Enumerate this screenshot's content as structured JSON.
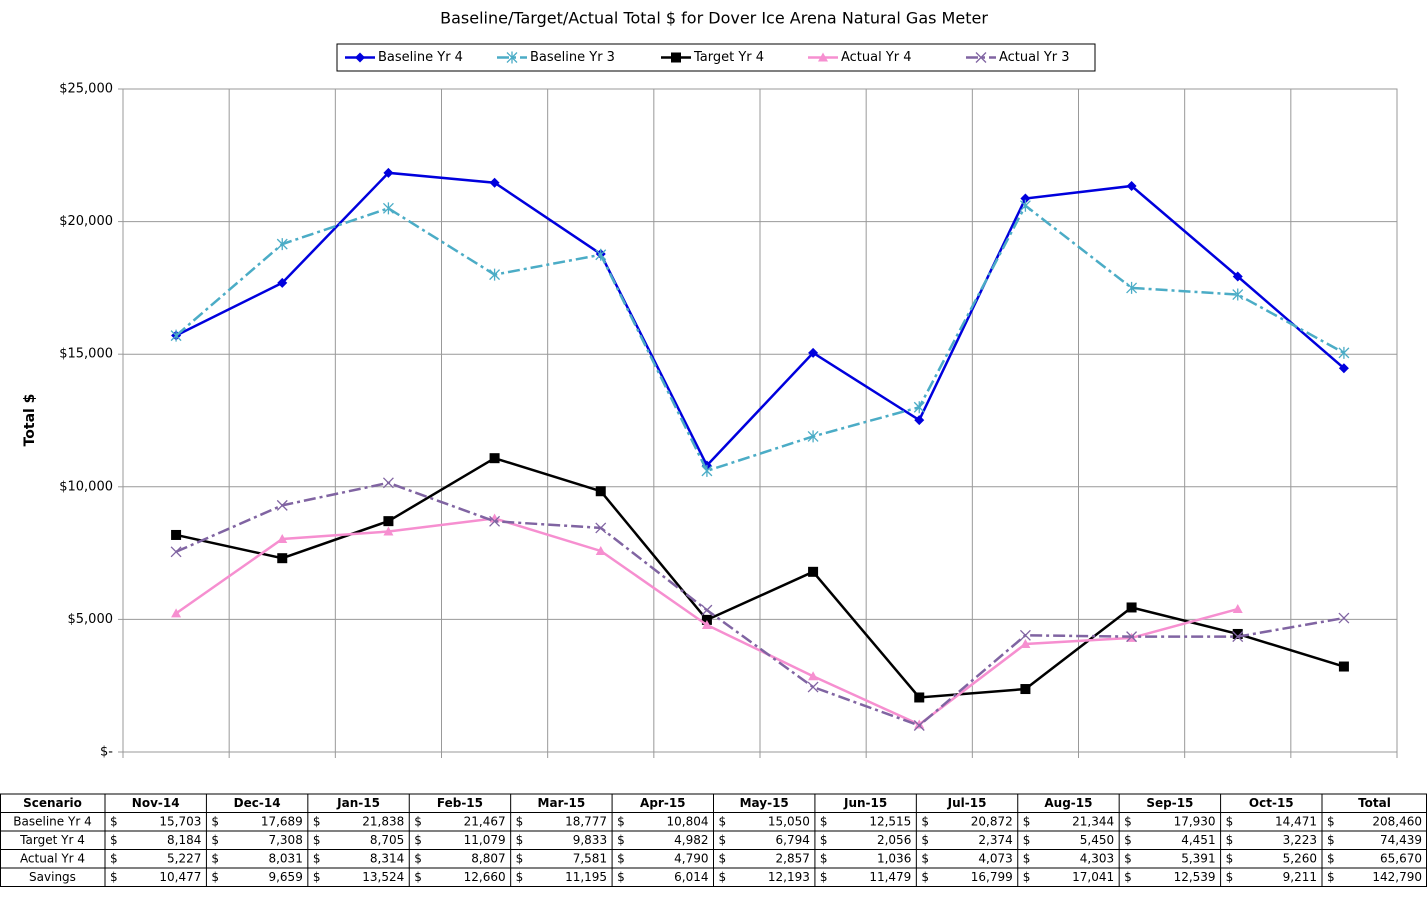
{
  "chart_data": {
    "type": "line",
    "title": "Baseline/Target/Actual Total $ for Dover Ice Arena Natural Gas Meter",
    "y_label": "Total $",
    "ylim": [
      0,
      25000
    ],
    "yticks": [
      {
        "value": 0,
        "label": "$-"
      },
      {
        "value": 5000,
        "label": "$5,000"
      },
      {
        "value": 10000,
        "label": "$10,000"
      },
      {
        "value": 15000,
        "label": "$15,000"
      },
      {
        "value": 20000,
        "label": "$20,000"
      },
      {
        "value": 25000,
        "label": "$25,000"
      }
    ],
    "grid": true,
    "legend": "top",
    "series": [
      {
        "name": "Baseline Yr 4",
        "color": "#0000dd",
        "dash": "solid",
        "marker": "diamond",
        "values": [
          15703,
          17689,
          21838,
          21467,
          18777,
          10804,
          15050,
          12515,
          20872,
          21344,
          17930,
          14471
        ]
      },
      {
        "name": "Baseline Yr 3",
        "color": "#4bacc6",
        "dash": "dashdot",
        "marker": "asterisk",
        "values": [
          15700,
          19150,
          20500,
          18000,
          18750,
          10600,
          11900,
          13000,
          20600,
          17500,
          17250,
          15050
        ]
      },
      {
        "name": "Target Yr 4",
        "color": "#000000",
        "dash": "solid",
        "marker": "square",
        "values": [
          8184,
          7308,
          8705,
          11079,
          9833,
          4982,
          6794,
          2056,
          2374,
          5450,
          4451,
          3223
        ]
      },
      {
        "name": "Actual Yr 4",
        "color": "#f68fd0",
        "dash": "solid",
        "marker": "triangle",
        "values": [
          5227,
          8031,
          8314,
          8807,
          7581,
          4790,
          2857,
          1036,
          4073,
          4303,
          5391,
          null
        ]
      },
      {
        "name": "Actual Yr 3",
        "color": "#8064a2",
        "dash": "dashdot",
        "marker": "x",
        "values": [
          7550,
          9300,
          10150,
          8700,
          8450,
          5350,
          2450,
          1000,
          4400,
          4350,
          4350,
          5050
        ]
      }
    ]
  },
  "table": {
    "currency": "$",
    "header": [
      "Scenario",
      "Nov-14",
      "Dec-14",
      "Jan-15",
      "Feb-15",
      "Mar-15",
      "Apr-15",
      "May-15",
      "Jun-15",
      "Jul-15",
      "Aug-15",
      "Sep-15",
      "Oct-15",
      "Total"
    ],
    "rows": [
      {
        "label": "Baseline Yr 4",
        "cells": [
          "15,703",
          "17,689",
          "21,838",
          "21,467",
          "18,777",
          "10,804",
          "15,050",
          "12,515",
          "20,872",
          "21,344",
          "17,930",
          "14,471",
          "208,460"
        ]
      },
      {
        "label": "Target Yr 4",
        "cells": [
          "8,184",
          "7,308",
          "8,705",
          "11,079",
          "9,833",
          "4,982",
          "6,794",
          "2,056",
          "2,374",
          "5,450",
          "4,451",
          "3,223",
          "74,439"
        ]
      },
      {
        "label": "Actual Yr 4",
        "cells": [
          "5,227",
          "8,031",
          "8,314",
          "8,807",
          "7,581",
          "4,790",
          "2,857",
          "1,036",
          "4,073",
          "4,303",
          "5,391",
          "5,260",
          "65,670"
        ]
      },
      {
        "label": "Savings",
        "cells": [
          "10,477",
          "9,659",
          "13,524",
          "12,660",
          "11,195",
          "6,014",
          "12,193",
          "11,479",
          "16,799",
          "17,041",
          "12,539",
          "9,211",
          "142,790"
        ]
      }
    ],
    "highlight": {
      "row": 2,
      "col": 11,
      "color": "#f79646"
    }
  }
}
